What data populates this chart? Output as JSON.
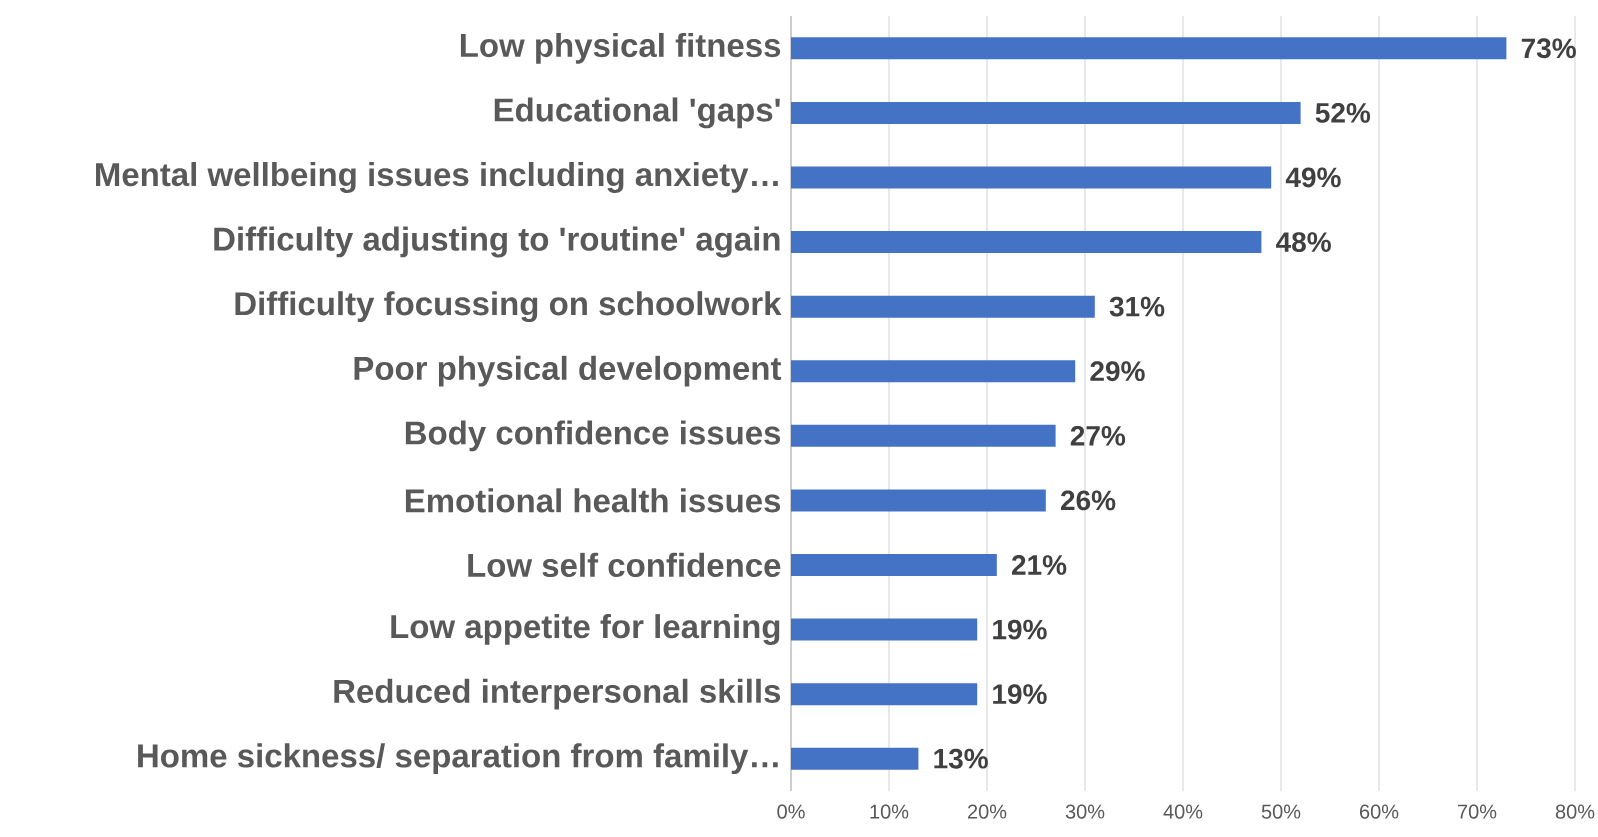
{
  "chart_data": {
    "type": "bar",
    "orientation": "horizontal",
    "categories": [
      "Low physical fitness",
      "Educational 'gaps'",
      "Mental wellbeing issues including anxiety…",
      "Difficulty adjusting to 'routine' again",
      "Difficulty focussing on schoolwork",
      "Poor physical development",
      "Body confidence issues",
      "Emotional health issues",
      "Low self confidence",
      "Low appetite for learning",
      "Reduced interpersonal skills",
      "Home sickness/ separation from family…"
    ],
    "values": [
      73,
      52,
      49,
      48,
      31,
      29,
      27,
      26,
      21,
      19,
      19,
      13
    ],
    "value_labels": [
      "73%",
      "52%",
      "49%",
      "48%",
      "31%",
      "29%",
      "27%",
      "26%",
      "21%",
      "19%",
      "19%",
      "13%"
    ],
    "color": "#4472c4",
    "xlim": [
      0,
      80
    ],
    "xticks": [
      {
        "value": 0,
        "label": "0%"
      },
      {
        "value": 10,
        "label": "10%"
      },
      {
        "value": 20,
        "label": "20%"
      },
      {
        "value": 30,
        "label": "30%"
      },
      {
        "value": 40,
        "label": "40%"
      },
      {
        "value": 50,
        "label": "50%"
      },
      {
        "value": 60,
        "label": "60%"
      },
      {
        "value": 70,
        "label": "70%"
      },
      {
        "value": 80,
        "label": "80%"
      }
    ],
    "grid": "x"
  }
}
